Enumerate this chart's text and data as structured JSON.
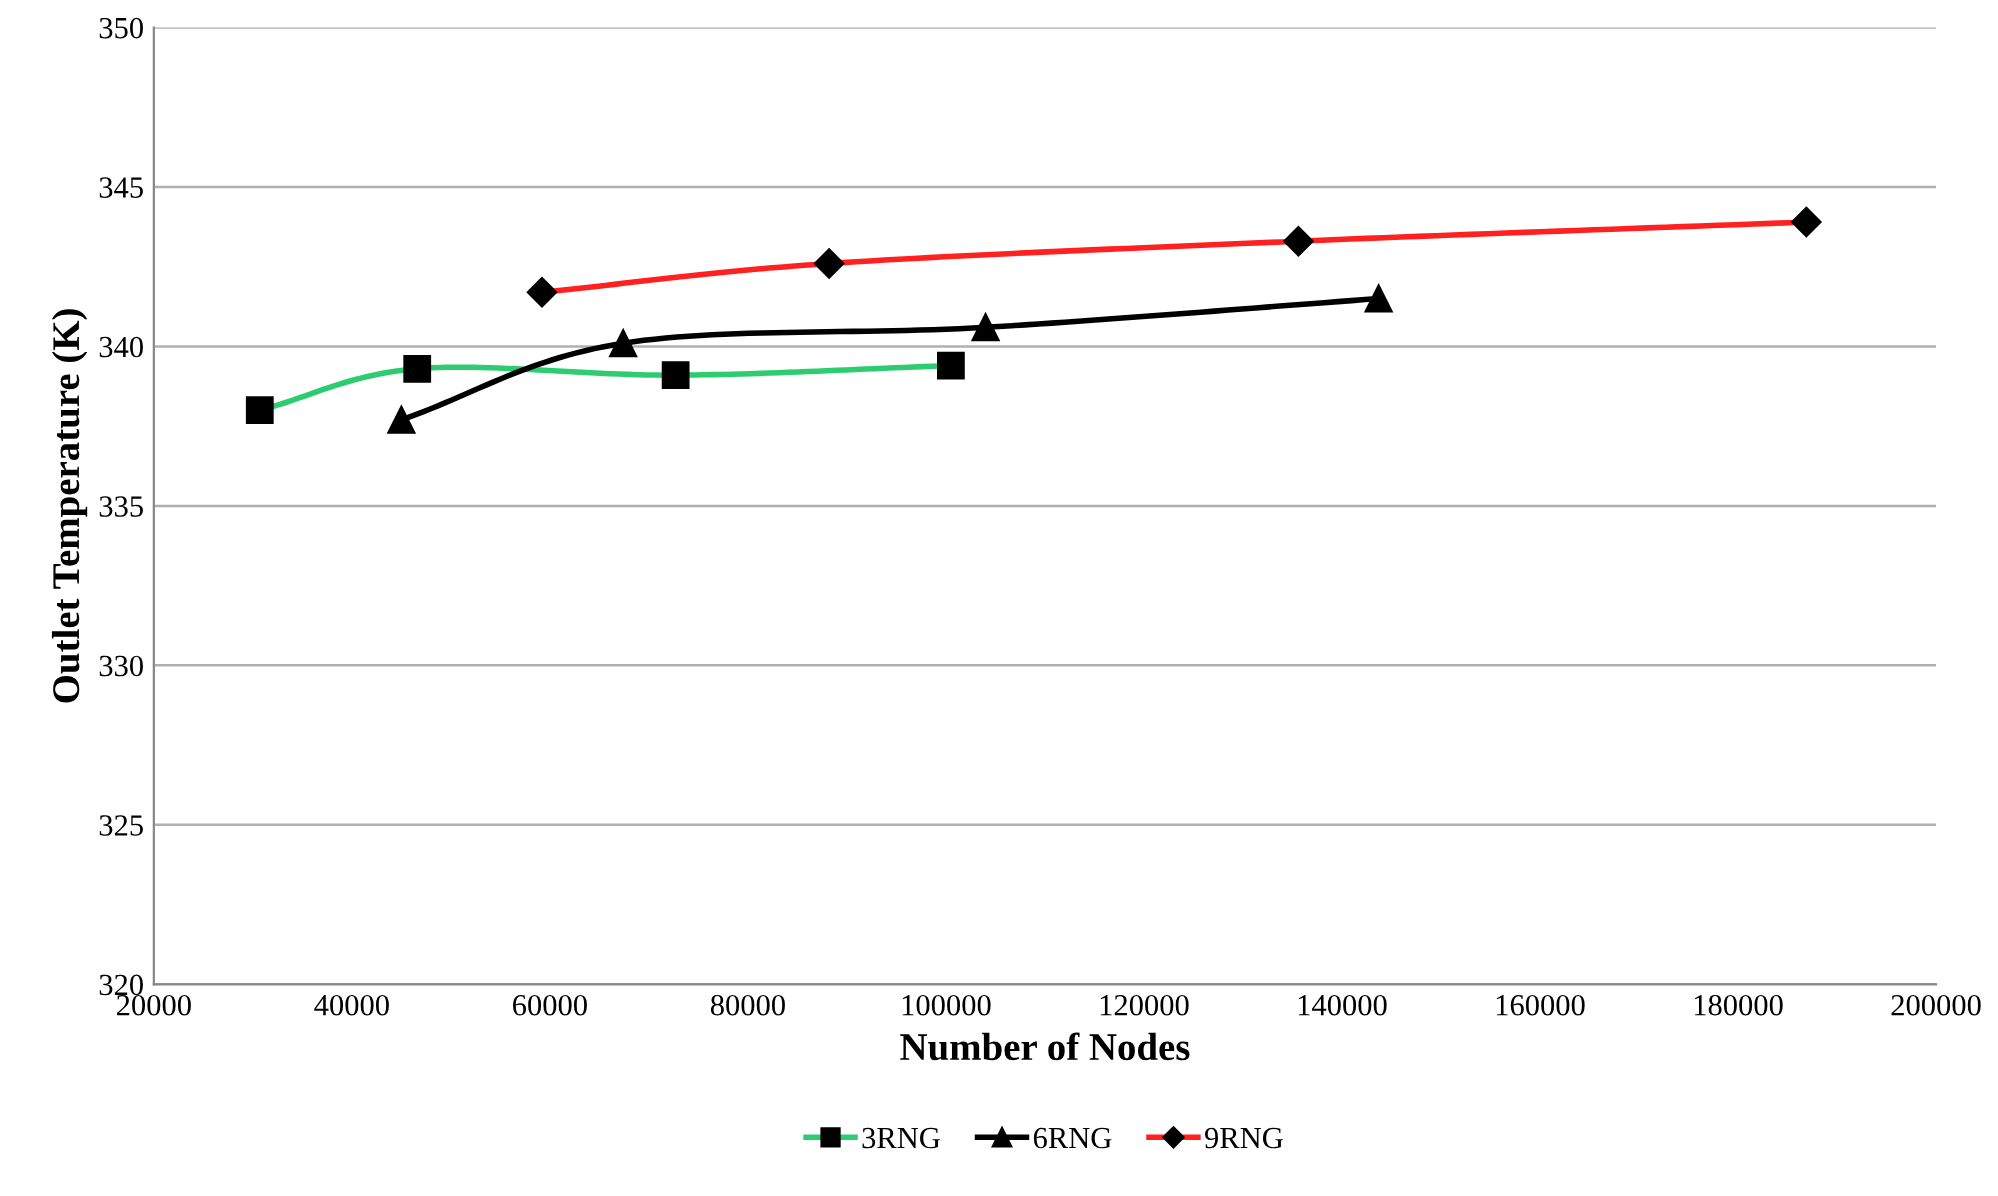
{
  "chart_data": {
    "type": "line",
    "xlabel": "Number of Nodes",
    "ylabel": "Outlet Temperature (K)",
    "xlim": [
      20000,
      200000
    ],
    "xticks": [
      20000,
      40000,
      60000,
      80000,
      100000,
      120000,
      140000,
      160000,
      180000,
      200000
    ],
    "ylim": [
      320,
      350
    ],
    "yticks": [
      320,
      325,
      330,
      335,
      340,
      345,
      350
    ],
    "grid": "y",
    "legend": "bottom",
    "series": [
      {
        "name": "3RNG",
        "color": "#2ecc71",
        "marker": "square",
        "x": [
          30700,
          46600,
          72700,
          100500
        ],
        "values": [
          338.0,
          339.3,
          339.1,
          339.4
        ]
      },
      {
        "name": "6RNG",
        "color": "#000000",
        "marker": "triangle",
        "x": [
          45000,
          67400,
          104000,
          143700
        ],
        "values": [
          337.7,
          340.1,
          340.6,
          341.5
        ]
      },
      {
        "name": "9RNG",
        "color": "#ff2020",
        "marker": "diamond",
        "x": [
          59200,
          88200,
          135600,
          186900
        ],
        "values": [
          341.7,
          342.6,
          343.3,
          343.9
        ]
      }
    ]
  }
}
